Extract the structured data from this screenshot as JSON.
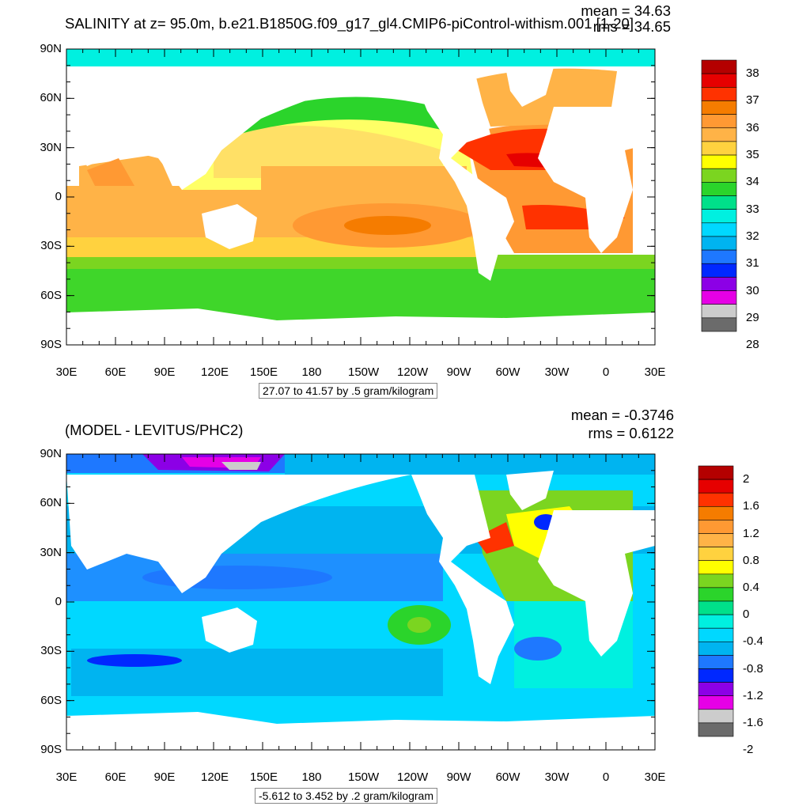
{
  "top_panel": {
    "title": "SALINITY at z=  95.0m, b.e21.B1850G.f09_g17_gl4.CMIP6-piControl-withism.001 [1-20]",
    "mean": "mean = 34.63",
    "rms": "rms = 34.65",
    "info": "27.07 to 41.57 by .5 gram/kilogram",
    "colorbar_labels": [
      "38",
      "37",
      "36",
      "35",
      "34",
      "33",
      "32",
      "31",
      "30",
      "29",
      "28"
    ],
    "colorbar_colors": [
      "#b40000",
      "#e60000",
      "#ff3200",
      "#f57c00",
      "#ff9933",
      "#ffb347",
      "#ffd23f",
      "#ffff00",
      "#7bd520",
      "#2bd42b",
      "#00e08a",
      "#00f0e0",
      "#00d8ff",
      "#00b4f0",
      "#1e78ff",
      "#0028ff",
      "#8c00e6",
      "#e600e6",
      "#cccccc",
      "#6b6b6b"
    ]
  },
  "bottom_panel": {
    "title": "(MODEL - LEVITUS/PHC2)",
    "mean": "mean = -0.3746",
    "rms": "rms = 0.6122",
    "info": "-5.612 to 3.452 by .2 gram/kilogram",
    "colorbar_labels": [
      "2",
      "1.6",
      "1.2",
      "0.8",
      "0.4",
      "0",
      "-0.4",
      "-0.8",
      "-1.2",
      "-1.6",
      "-2"
    ],
    "colorbar_colors": [
      "#b40000",
      "#e60000",
      "#ff3200",
      "#f57c00",
      "#ff9933",
      "#ffb347",
      "#ffd23f",
      "#ffff00",
      "#7bd520",
      "#2bd42b",
      "#00e08a",
      "#00f0e0",
      "#00d8ff",
      "#00b4f0",
      "#1e78ff",
      "#0028ff",
      "#8c00e6",
      "#e600e6",
      "#cccccc",
      "#6b6b6b"
    ]
  },
  "axes": {
    "lat_labels": [
      "90N",
      "60N",
      "30N",
      "0",
      "30S",
      "60S",
      "90S"
    ],
    "lon_labels": [
      "30E",
      "60E",
      "90E",
      "120E",
      "150E",
      "180",
      "150W",
      "120W",
      "90W",
      "60W",
      "30W",
      "0",
      "30E"
    ]
  }
}
